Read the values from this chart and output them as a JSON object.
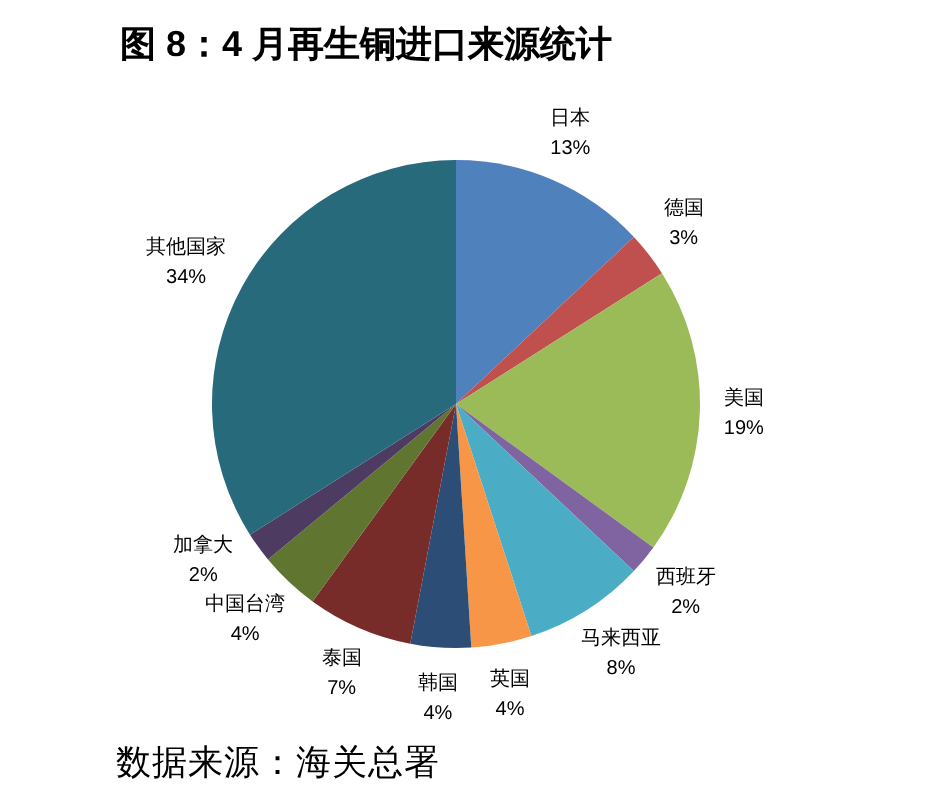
{
  "chart_data": {
    "type": "pie",
    "title": "图 8：4 月再生铜进口来源统计",
    "categories": [
      "日本",
      "德国",
      "美国",
      "西班牙",
      "马来西亚",
      "英国",
      "韩国",
      "泰国",
      "中国台湾",
      "加拿大",
      "其他国家"
    ],
    "values": [
      13,
      3,
      19,
      2,
      8,
      4,
      4,
      7,
      4,
      2,
      34
    ],
    "value_labels": [
      "13%",
      "3%",
      "19%",
      "2%",
      "8%",
      "4%",
      "4%",
      "7%",
      "4%",
      "2%",
      "34%"
    ],
    "colors": [
      "#4f81bd",
      "#c0504d",
      "#9bbb59",
      "#8064a2",
      "#4bacc6",
      "#f79646",
      "#2c4d75",
      "#772c2a",
      "#5f7530",
      "#4d3b62",
      "#276a7c"
    ],
    "annotations": [
      "数据来源：海关总署"
    ]
  }
}
